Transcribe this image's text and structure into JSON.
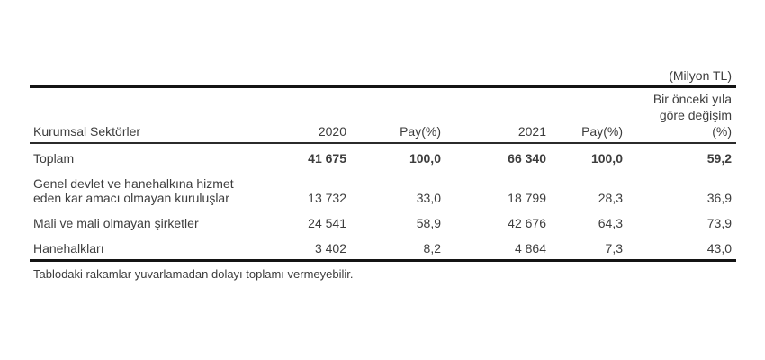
{
  "unit_note": "(Milyon TL)",
  "table": {
    "headers": {
      "sector": "Kurumsal Sektörler",
      "y2020": "2020",
      "pay2020": "Pay(%)",
      "y2021": "2021",
      "pay2021": "Pay(%)",
      "change": "Bir önceki yıla\ngöre değişim\n(%)"
    },
    "rows": [
      {
        "label": "Toplam",
        "values": [
          "41 675",
          "100,0",
          "66 340",
          "100,0",
          "59,2"
        ]
      },
      {
        "label": "Genel devlet ve hanehalkına hizmet\neden kar amacı olmayan kuruluşlar",
        "values": [
          "13 732",
          "33,0",
          "18 799",
          "28,3",
          "36,9"
        ]
      },
      {
        "label": "Mali ve mali olmayan şirketler",
        "values": [
          "24 541",
          "58,9",
          "42 676",
          "64,3",
          "73,9"
        ]
      },
      {
        "label": "Hanehalkları",
        "values": [
          "3 402",
          "8,2",
          "4 864",
          "7,3",
          "43,0"
        ]
      }
    ]
  },
  "footnote": "Tablodaki rakamlar yuvarlamadan dolayı toplamı vermeyebilir.",
  "colors": {
    "background": "#ffffff",
    "text": "#3d3d3d",
    "rule_heavy": "#141414",
    "rule_light": "#2b2b2b"
  },
  "chart_data": {
    "type": "table",
    "unit": "(Milyon TL)",
    "columns": [
      "Kurumsal Sektörler",
      "2020",
      "Pay(%)",
      "2021",
      "Pay(%)",
      "Bir önceki yıla göre değişim (%)"
    ],
    "rows": [
      [
        "Toplam",
        "41 675",
        "100,0",
        "66 340",
        "100,0",
        "59,2"
      ],
      [
        "Genel devlet ve hanehalkına hizmet eden kar amacı olmayan kuruluşlar",
        "13 732",
        "33,0",
        "18 799",
        "28,3",
        "36,9"
      ],
      [
        "Mali ve mali olmayan şirketler",
        "24 541",
        "58,9",
        "42 676",
        "64,3",
        "73,9"
      ],
      [
        "Hanehalkları",
        "3 402",
        "8,2",
        "4 864",
        "7,3",
        "43,0"
      ]
    ],
    "numeric_rows": [
      {
        "sector": "Toplam",
        "v2020": 41675,
        "pay2020": 100.0,
        "v2021": 66340,
        "pay2021": 100.0,
        "change_pct": 59.2
      },
      {
        "sector": "Genel devlet ve hanehalkına hizmet eden kar amacı olmayan kuruluşlar",
        "v2020": 13732,
        "pay2020": 33.0,
        "v2021": 18799,
        "pay2021": 28.3,
        "change_pct": 36.9
      },
      {
        "sector": "Mali ve mali olmayan şirketler",
        "v2020": 24541,
        "pay2020": 58.9,
        "v2021": 42676,
        "pay2021": 64.3,
        "change_pct": 73.9
      },
      {
        "sector": "Hanehalkları",
        "v2020": 3402,
        "pay2020": 8.2,
        "v2021": 4864,
        "pay2021": 7.3,
        "change_pct": 43.0
      }
    ],
    "footnote": "Tablodaki rakamlar yuvarlamadan dolayı toplamı vermeyebilir."
  }
}
